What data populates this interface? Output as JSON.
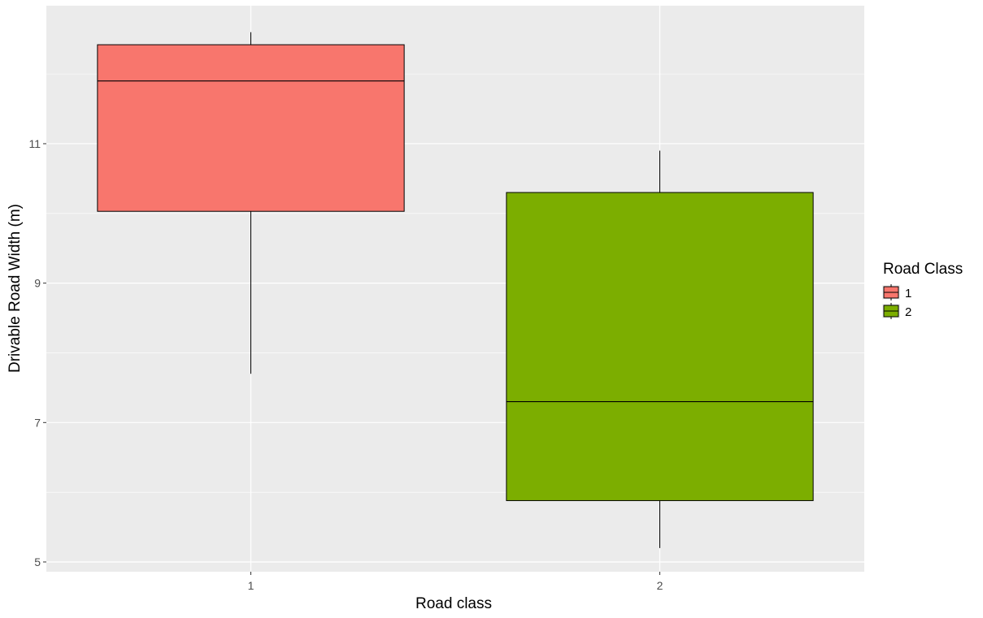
{
  "chart_data": {
    "type": "boxplot",
    "xlabel": "Road class",
    "ylabel": "Drivable Road Width (m)",
    "categories": [
      "1",
      "2"
    ],
    "y_ticks": [
      5,
      7,
      9,
      11
    ],
    "ylim": [
      4.86,
      12.98
    ],
    "grid": true,
    "legend": {
      "title": "Road Class",
      "position": "right",
      "entries": [
        "1",
        "2"
      ]
    },
    "colors": {
      "panel_background": "#EBEBEB",
      "grid": "#FFFFFF",
      "1": "#F8766D",
      "2": "#7CAE00"
    },
    "boxes": [
      {
        "category": "1",
        "min": 7.7,
        "q1": 10.03,
        "median": 11.9,
        "q3": 12.42,
        "max": 12.6
      },
      {
        "category": "2",
        "min": 5.2,
        "q1": 5.88,
        "median": 7.3,
        "q3": 10.3,
        "max": 10.9
      }
    ]
  }
}
